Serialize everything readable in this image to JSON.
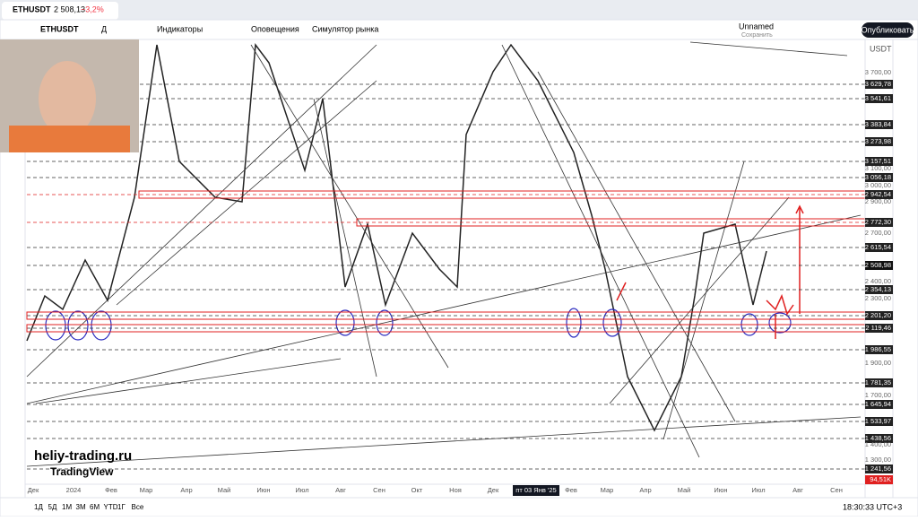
{
  "tab": {
    "symbol": "ETHUSDT",
    "price": "2 508,13",
    "change": "−3,2%"
  },
  "toolbar": {
    "symbol": "ETHUSDT",
    "interval": "Д",
    "indicators": "Индикаторы",
    "alerts": "Оповещения",
    "simulator": "Симулятор рынка",
    "layout_name": "Unnamed",
    "save": "Сохранить",
    "publish": "Опубликовать"
  },
  "price_scale": {
    "currency": "USDT",
    "labels": [
      "3 700,00",
      "3 629,78",
      "3 541,61",
      "3 383,84",
      "3 273,98",
      "3 157,51",
      "3 100,00",
      "3 056,18",
      "3 000,00",
      "2 942,54",
      "2 900,00",
      "2 772,30",
      "2 700,00",
      "2 615,54",
      "2 508,98",
      "2 400,00",
      "2 354,13",
      "2 300,00",
      "2 201,20",
      "2 119,46",
      "1 986,55",
      "1 900,00",
      "1 781,35",
      "1 700,00",
      "1 645,94",
      "1 533,97",
      "1 438,56",
      "1 400,00",
      "1 300,00",
      "1 241,56",
      "94,51K"
    ]
  },
  "time_axis": {
    "labels": [
      "Дек",
      "2024",
      "Фев",
      "Мар",
      "Апр",
      "Май",
      "Июн",
      "Июл",
      "Авг",
      "Сен",
      "Окт",
      "Ноя",
      "Дек",
      "пт 03 Янв '25",
      "Фев",
      "Мар",
      "Апр",
      "Май",
      "Июн",
      "Июл",
      "Авг",
      "Сен"
    ]
  },
  "bottom_bar": {
    "ranges": [
      "1Д",
      "5Д",
      "1М",
      "3М",
      "6М",
      "YTD",
      "1Г",
      "Все"
    ],
    "clock": "18:30:33 UTC+3"
  },
  "watermark": {
    "site": "heliy-trading.ru",
    "brand": "TradingView"
  }
}
